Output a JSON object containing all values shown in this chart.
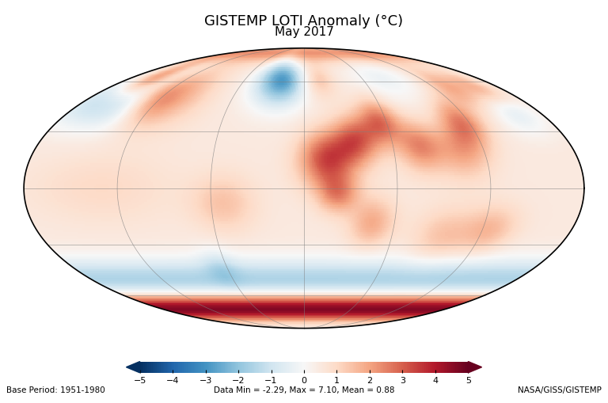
{
  "title": "GISTEMP LOTI Anomaly (°C)",
  "subtitle": "May 2017",
  "colorbar_min": -5,
  "colorbar_max": 5,
  "colorbar_ticks": [
    -5,
    -4,
    -3,
    -2,
    -1,
    0,
    1,
    2,
    3,
    4,
    5
  ],
  "base_period": "Base Period: 1951-1980",
  "data_stats": "Data Min = -2.29, Max = 7.10, Mean = 0.88",
  "credit": "NASA/GISS/GISTEMP",
  "background_color": "#ffffff",
  "colormap": "RdBu_r",
  "title_fontsize": 13,
  "subtitle_fontsize": 11,
  "footer_fontsize": 7.5,
  "grid_lons": [
    -120,
    -60,
    0,
    60,
    120,
    180
  ],
  "grid_lats": [
    -60,
    -30,
    0,
    30,
    60
  ]
}
